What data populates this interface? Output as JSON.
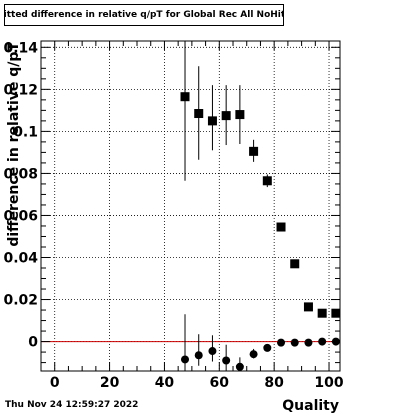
{
  "title": "Fitted difference in relative q/pT for Global Rec All NoHits",
  "footer": {
    "date": "Thu Nov 24 12:59:27 2022"
  },
  "chart_data": {
    "type": "scatter",
    "title": "Fitted difference in relative q/pT for Global Rec All NoHits",
    "xlabel": "Quality",
    "ylabel": "difference in relative q/pT",
    "xlim": [
      -5,
      104
    ],
    "ylim": [
      -0.014,
      0.143
    ],
    "xticks": [
      0,
      20,
      40,
      60,
      80,
      100
    ],
    "yticks": [
      0,
      0.02,
      0.04,
      0.06,
      0.08,
      0.1,
      0.12,
      0.14
    ],
    "xtick_labels": [
      "0",
      "20",
      "40",
      "60",
      "80",
      "100"
    ],
    "ytick_labels": [
      "0",
      "0.02",
      "0.04",
      "0.06",
      "0.08",
      "0.1",
      "0.12",
      "0.14"
    ],
    "grid": true,
    "reference_line": {
      "y": 0,
      "color": "#cc0000"
    },
    "series": [
      {
        "marker": "square",
        "x": [
          47.5,
          52.5,
          57.5,
          62.5,
          67.5,
          72.5,
          77.5,
          82.5,
          87.5,
          92.5,
          97.5,
          102.5
        ],
        "y": [
          0.1165,
          0.1085,
          0.105,
          0.1075,
          0.108,
          0.0905,
          0.0765,
          0.0545,
          0.037,
          0.0165,
          0.0135,
          0.0135
        ],
        "yerr_low": [
          0.04,
          0.022,
          0.014,
          0.014,
          0.014,
          0.005,
          0.003,
          0.001,
          0.001,
          0.001,
          0.001,
          0.001
        ],
        "yerr_high": [
          0.0305,
          0.0225,
          0.017,
          0.0145,
          0.014,
          0.0055,
          0.003,
          0.001,
          0.001,
          0.001,
          0.001,
          0.001
        ]
      },
      {
        "marker": "circle",
        "x": [
          47.5,
          52.5,
          57.5,
          62.5,
          67.5,
          72.5,
          77.5,
          82.5,
          87.5,
          92.5,
          97.5,
          102.5
        ],
        "y": [
          -0.0085,
          -0.0065,
          -0.0045,
          -0.009,
          -0.012,
          -0.006,
          -0.003,
          -0.0005,
          -0.0005,
          -0.0005,
          0.0,
          0.0
        ],
        "yerr_low": [
          0.0055,
          0.005,
          0.005,
          0.005,
          0.002,
          0.002,
          0.0015,
          0.0005,
          0.0005,
          0.0005,
          0.0005,
          0.0005
        ],
        "yerr_high": [
          0.0215,
          0.01,
          0.0075,
          0.0075,
          0.0045,
          0.0025,
          0.0015,
          0.0005,
          0.0005,
          0.0005,
          0.0005,
          0.0005
        ]
      }
    ]
  }
}
